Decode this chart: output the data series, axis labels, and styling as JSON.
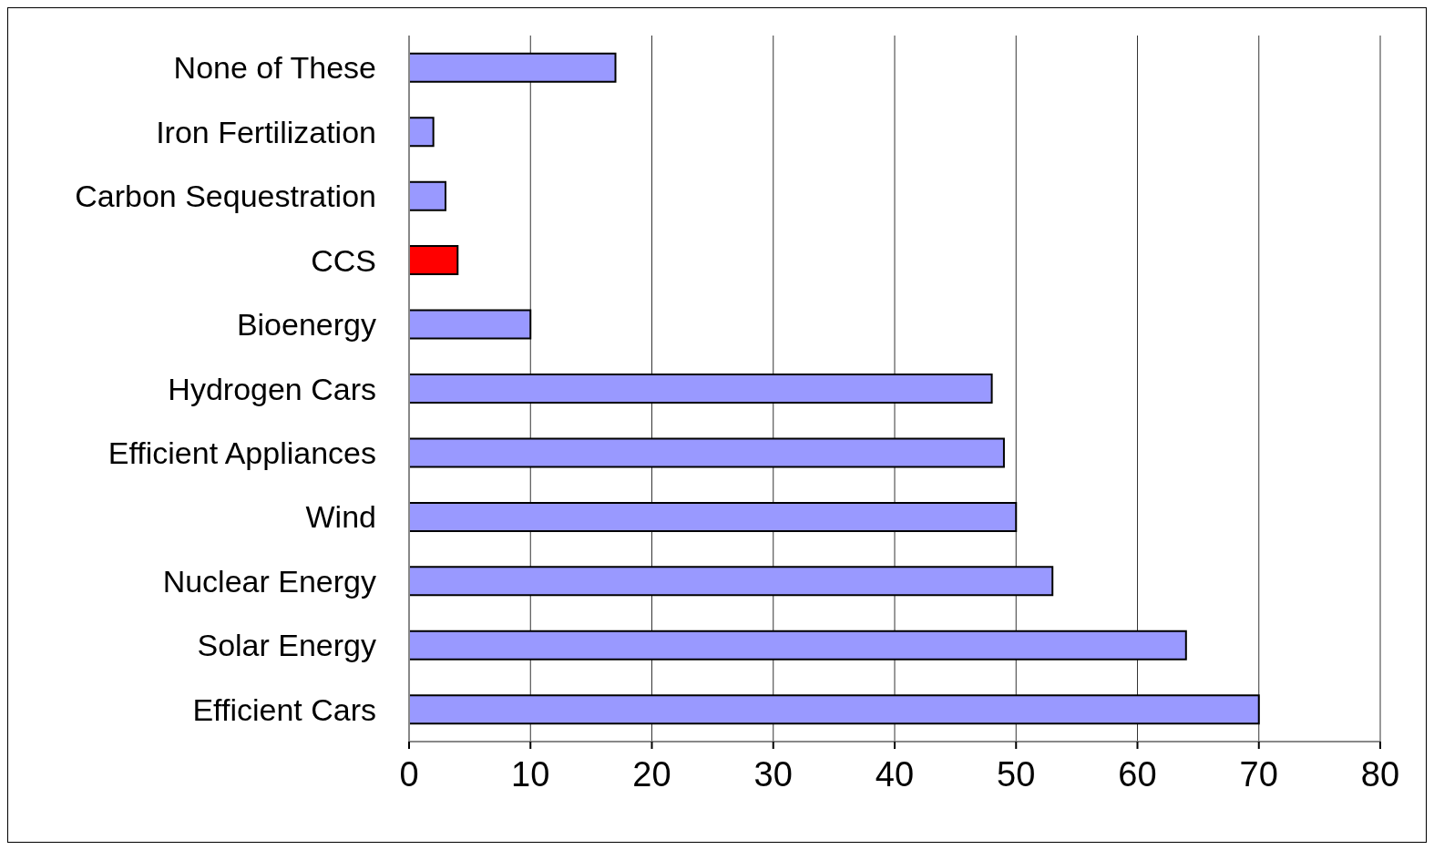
{
  "chart_data": {
    "type": "bar",
    "orientation": "horizontal",
    "categories": [
      "None of These",
      "Iron Fertilization",
      "Carbon Sequestration",
      "CCS",
      "Bioenergy",
      "Hydrogen Cars",
      "Efficient Appliances",
      "Wind",
      "Nuclear Energy",
      "Solar Energy",
      "Efficient Cars"
    ],
    "values": [
      17,
      2,
      3,
      4,
      10,
      48,
      49,
      50,
      53,
      64,
      70
    ],
    "colors": [
      "#9999ff",
      "#9999ff",
      "#9999ff",
      "#ff0000",
      "#9999ff",
      "#9999ff",
      "#9999ff",
      "#9999ff",
      "#9999ff",
      "#9999ff",
      "#9999ff"
    ],
    "xlim": [
      0,
      80
    ],
    "xticks": [
      0,
      10,
      20,
      30,
      40,
      50,
      60,
      70,
      80
    ],
    "grid": "x"
  }
}
